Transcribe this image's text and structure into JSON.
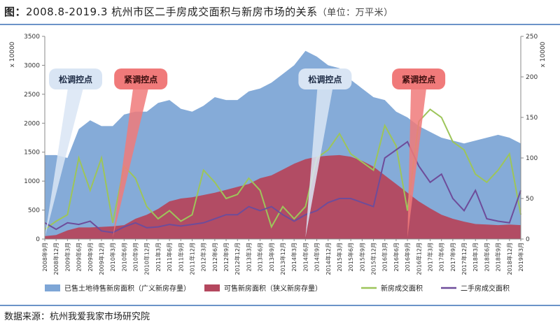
{
  "title": {
    "prefix": "图：",
    "main": "2008.8-2019.3 杭州市区二手房成交面积与新房市场的关系",
    "unit": "（单位：万平米）"
  },
  "source": "数据来源：杭州我爱我家市场研究院",
  "colors": {
    "stock_broad": "#7ea6d6",
    "stock_narrow": "#b4475e",
    "new_deal": "#9dc55a",
    "second_deal": "#6e4c9a",
    "loose_bubble": "#d9e5f4",
    "tight_bubble": "#f07a7a",
    "rule": "#6b93c8"
  },
  "annotations": [
    {
      "label": "松调控点",
      "kind": "loose",
      "x": "2008年9月"
    },
    {
      "label": "紧调控点",
      "kind": "tight",
      "x": "2010年3月"
    },
    {
      "label": "松调控点",
      "kind": "loose",
      "x": "2014年6月"
    },
    {
      "label": "紧调控点",
      "kind": "tight",
      "x": "2016年9月"
    }
  ],
  "chart_data": {
    "type": "area",
    "x": [
      "2008年9月",
      "2008年12月",
      "2009年3月",
      "2009年6月",
      "2009年9月",
      "2009年12月",
      "2010年3月",
      "2010年6月",
      "2010年9月",
      "2010年12月",
      "2011年3月",
      "2011年6月",
      "2011年9月",
      "2011年12月",
      "2012年3月",
      "2012年6月",
      "2012年9月",
      "2012年12月",
      "2013年3月",
      "2013年6月",
      "2013年9月",
      "2013年12月",
      "2014年3月",
      "2014年6月",
      "2014年9月",
      "2014年12月",
      "2015年3月",
      "2015年6月",
      "2015年9月",
      "2015年12月",
      "2016年3月",
      "2016年6月",
      "2016年9月",
      "2016年12月",
      "2017年3月",
      "2017年6月",
      "2017年9月",
      "2017年12月",
      "2018年3月",
      "2018年6月",
      "2018年9月",
      "2018年12月",
      "2019年3月"
    ],
    "left_axis": {
      "label": "x 10000",
      "ylim": [
        0,
        3500
      ],
      "ticks": [
        0,
        500,
        1000,
        1500,
        2000,
        2500,
        3000,
        3500
      ]
    },
    "right_axis": {
      "label": "x 10000",
      "ylim": [
        0,
        250
      ],
      "ticks": [
        0,
        50,
        100,
        150,
        200,
        250
      ]
    },
    "series": [
      {
        "name": "已售土地待售新房面积（广义新房存量）",
        "type": "area",
        "axis": "left",
        "values": [
          1450,
          1450,
          1400,
          1900,
          2050,
          1950,
          1950,
          2150,
          2200,
          2200,
          2350,
          2400,
          2250,
          2200,
          2300,
          2450,
          2400,
          2400,
          2550,
          2600,
          2700,
          2850,
          3000,
          3250,
          3150,
          3000,
          2950,
          2750,
          2600,
          2450,
          2400,
          2200,
          2100,
          1950,
          1850,
          1750,
          1700,
          1650,
          1700,
          1750,
          1800,
          1750,
          1650
        ]
      },
      {
        "name": "可售新房面积（狭义新房存量）",
        "type": "area",
        "axis": "left",
        "values": [
          50,
          70,
          150,
          200,
          200,
          210,
          220,
          240,
          350,
          420,
          520,
          650,
          700,
          720,
          760,
          800,
          850,
          900,
          950,
          1050,
          1100,
          1200,
          1300,
          1380,
          1420,
          1440,
          1450,
          1420,
          1350,
          1250,
          1100,
          950,
          800,
          650,
          530,
          420,
          350,
          300,
          260,
          250,
          240,
          250,
          240
        ]
      },
      {
        "name": "新房成交面积",
        "type": "line",
        "axis": "right",
        "values": [
          12,
          22,
          30,
          100,
          60,
          100,
          20,
          90,
          75,
          40,
          25,
          35,
          22,
          30,
          85,
          70,
          50,
          55,
          75,
          60,
          15,
          40,
          25,
          40,
          100,
          110,
          130,
          105,
          95,
          85,
          140,
          115,
          35,
          145,
          160,
          150,
          120,
          110,
          80,
          70,
          85,
          105,
          30
        ]
      },
      {
        "name": "二手房成交面积",
        "type": "line",
        "axis": "right",
        "values": [
          20,
          12,
          20,
          18,
          22,
          10,
          8,
          15,
          20,
          14,
          15,
          18,
          16,
          18,
          20,
          25,
          30,
          30,
          40,
          35,
          40,
          30,
          22,
          30,
          35,
          45,
          50,
          50,
          45,
          40,
          100,
          110,
          120,
          90,
          70,
          80,
          50,
          35,
          60,
          25,
          22,
          20,
          60
        ]
      }
    ]
  }
}
